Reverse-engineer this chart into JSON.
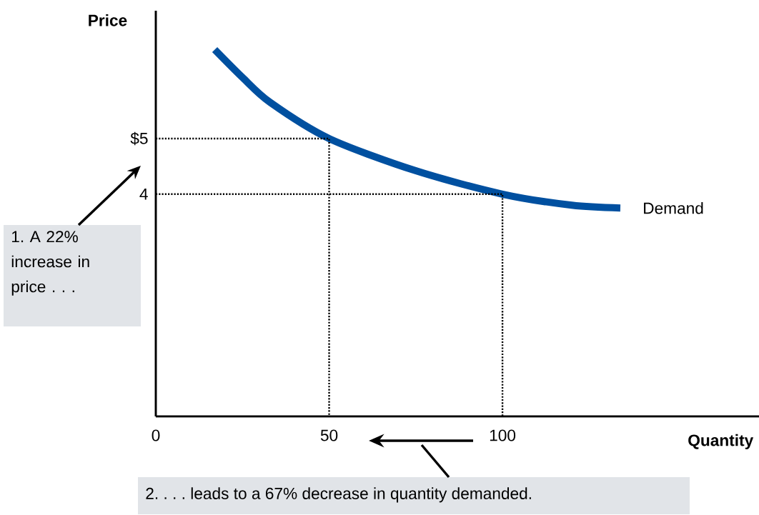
{
  "chart_data": {
    "type": "line",
    "xlabel": "Quantity",
    "ylabel": "Price",
    "xlim": [
      0,
      174
    ],
    "ylim": [
      0,
      7.3
    ],
    "xticks": [
      0,
      50,
      100
    ],
    "yticks": [
      4,
      {
        "value": 5,
        "label": "$5"
      }
    ],
    "grid": false,
    "legend": false,
    "marker": "none",
    "series": [
      {
        "name": "Demand",
        "color": "#0050a0",
        "x": [
          17,
          25,
          33,
          50,
          75,
          100,
          120,
          134
        ],
        "values": [
          6.6,
          6.1,
          5.65,
          5,
          4.42,
          4,
          3.8,
          3.75
        ]
      },
      {
        "color": "#000000",
        "line_style": "dotted",
        "x": [
          0,
          50,
          50
        ],
        "values": [
          5,
          5,
          0
        ]
      },
      {
        "color": "#000000",
        "line_style": "dotted",
        "x": [
          0,
          100,
          100
        ],
        "values": [
          4,
          4,
          0
        ]
      }
    ],
    "annotations": [
      "1. A 22% increase in price . . .",
      "2. . . . leads to a 67% decrease in quantity demanded."
    ]
  }
}
